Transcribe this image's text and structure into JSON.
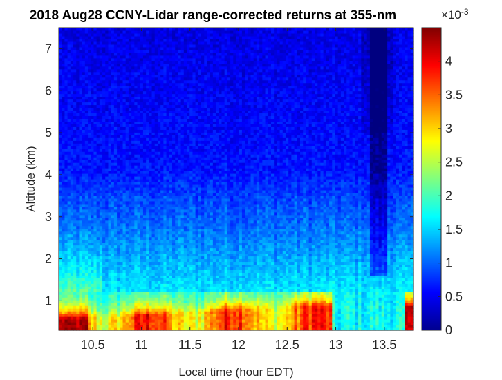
{
  "chart_data": {
    "type": "heatmap",
    "title": "2018 Aug28 CCNY-Lidar range-corrected returns at 355-nm",
    "xlabel": "Local time (hour EDT)",
    "ylabel": "Altitude (km)",
    "xlim": [
      10.15,
      13.8
    ],
    "ylim": [
      0.3,
      7.5
    ],
    "xticks": [
      10.5,
      11,
      11.5,
      12,
      12.5,
      13,
      13.5
    ],
    "yticks": [
      1,
      2,
      3,
      4,
      5,
      6,
      7
    ],
    "colorbar": {
      "ticks": [
        0,
        0.5,
        1,
        1.5,
        2,
        2.5,
        3,
        3.5,
        4
      ],
      "range": [
        0,
        4.5
      ],
      "exponent_base": "×10",
      "exponent": "-3",
      "colormap": "jet"
    }
  }
}
